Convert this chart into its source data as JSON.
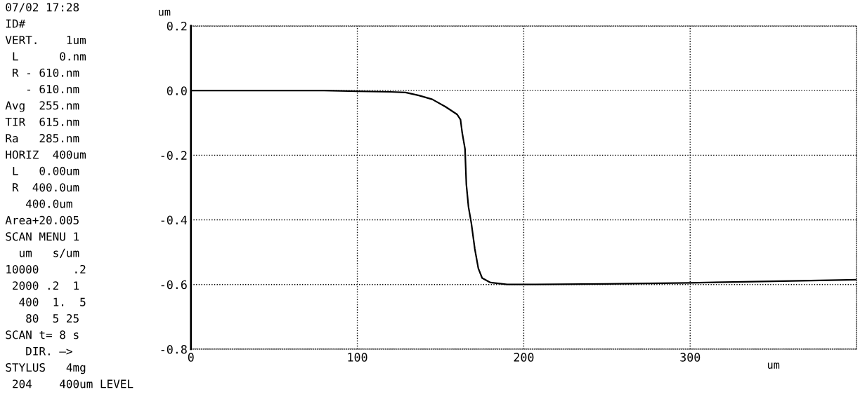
{
  "chart_data": [
    {
      "type": "other",
      "annotations": [
        "07/02 17:28",
        "ID#",
        "VERT.    1um",
        " L      0.nm",
        " R - 610.nm",
        "   - 610.nm",
        "Avg  255.nm",
        "TIR  615.nm",
        "Ra   285.nm",
        "HORIZ  400um",
        " L   0.00um",
        " R  400.0um",
        "   400.0um",
        "Area+20.005",
        "SCAN MENU 1",
        "  um   s/um",
        "10000     .2",
        " 2000 .2  1",
        "  400  1.  5",
        "   80  5 25",
        "SCAN t= 8 s",
        "   DIR. —>",
        "STYLUS   4mg",
        " 204    400um LEVEL"
      ]
    },
    {
      "type": "line",
      "ylabel": "um",
      "xlabel": "um",
      "xlim": [
        0,
        400
      ],
      "xticks": [
        0,
        100,
        200,
        300
      ],
      "ylim": [
        -0.8,
        0.2
      ],
      "yticks": [
        {
          "value": -0.8,
          "label": "-0.8"
        },
        {
          "value": -0.6,
          "label": "-0.6"
        },
        {
          "value": -0.4,
          "label": "-0.4"
        },
        {
          "value": -0.2,
          "label": "-0.2"
        },
        {
          "value": 0.0,
          "label": "0.0"
        },
        {
          "value": 0.2,
          "label": "0.2"
        }
      ],
      "grid": true,
      "line_style": "solid",
      "marker": "none",
      "x": [
        0,
        20,
        40,
        60,
        80,
        100,
        120,
        129,
        137,
        145,
        153,
        160,
        162,
        163,
        164.7,
        165.5,
        166.8,
        168.5,
        170.6,
        172.7,
        175,
        180,
        190,
        200,
        250,
        300,
        350,
        400
      ],
      "series": [
        {
          "color": "#000000",
          "values": [
            0,
            0,
            0,
            0,
            0,
            -0.002,
            -0.004,
            -0.006,
            -0.015,
            -0.027,
            -0.05,
            -0.074,
            -0.09,
            -0.13,
            -0.18,
            -0.29,
            -0.36,
            -0.41,
            -0.49,
            -0.55,
            -0.58,
            -0.594,
            -0.6,
            -0.6,
            -0.598,
            -0.595,
            -0.59,
            -0.585
          ]
        }
      ]
    }
  ]
}
